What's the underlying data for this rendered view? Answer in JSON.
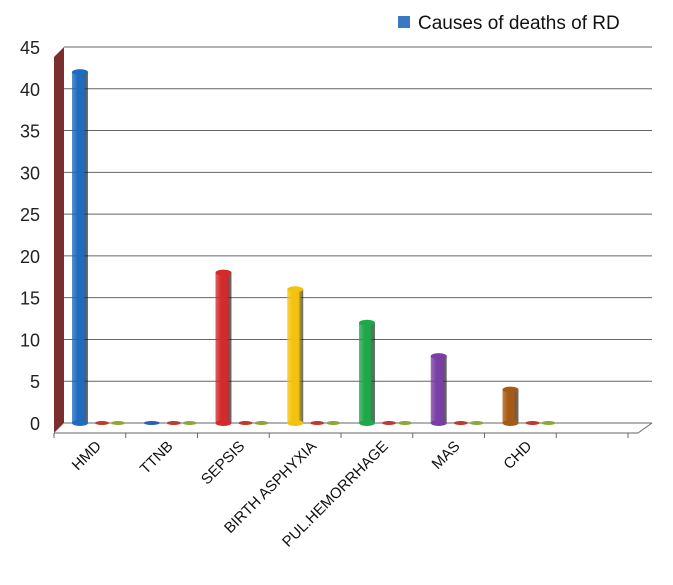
{
  "chart_data": {
    "type": "bar",
    "title": "",
    "xlabel": "",
    "ylabel": "",
    "ylim": [
      0,
      45
    ],
    "yticks": [
      0,
      5,
      10,
      15,
      20,
      25,
      30,
      35,
      40,
      45
    ],
    "grid": true,
    "legend_position": "top-right",
    "categories": [
      "HMD",
      "TTNB",
      "SEPSIS",
      "BIRTH ASPHYXIA",
      "PUL.HEMORRHAGE",
      "MAS",
      "CHD"
    ],
    "series": [
      {
        "name": "Causes of deaths of RD",
        "legend_color": "#3a78c4",
        "values": [
          42,
          0,
          18,
          16,
          12,
          8,
          4
        ],
        "colors": [
          "#1e6bc0",
          "#2c5fb0",
          "#d42a2a",
          "#f4c20d",
          "#1ea84a",
          "#7a3fa6",
          "#a65a16"
        ]
      }
    ],
    "empty_series_colors": [
      "#c0392b",
      "#8aa83a"
    ],
    "colors": {
      "wall": "#7a2e2e",
      "grid": "#666666"
    }
  }
}
